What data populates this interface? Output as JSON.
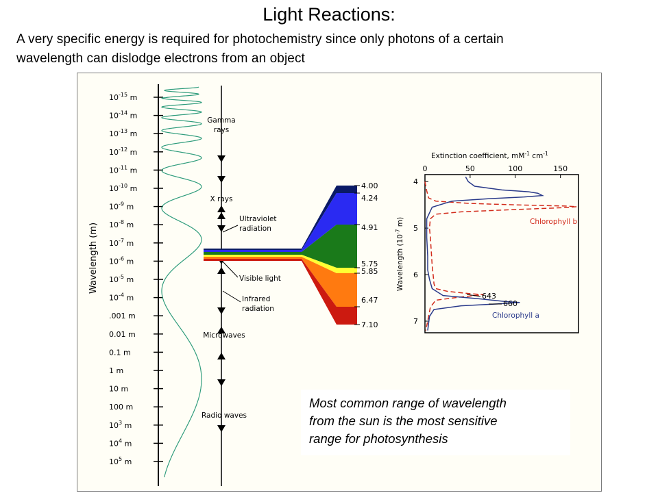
{
  "slide": {
    "title": "Light Reactions:",
    "subtitle_line1": "A very specific energy is required for photochemistry since only photons of a certain",
    "subtitle_line2": "wavelength can dislodge electrons from an object"
  },
  "spectrum": {
    "axis_label": "Wavelength (m)",
    "ticks": [
      {
        "base": "10",
        "exp": "-15",
        "unit": " m"
      },
      {
        "base": "10",
        "exp": "-14",
        "unit": " m"
      },
      {
        "base": "10",
        "exp": "-13",
        "unit": " m"
      },
      {
        "base": "10",
        "exp": "-12",
        "unit": " m"
      },
      {
        "base": "10",
        "exp": "-11",
        "unit": " m"
      },
      {
        "base": "10",
        "exp": "-10",
        "unit": " m"
      },
      {
        "base": "10",
        "exp": "-9",
        "unit": " m"
      },
      {
        "base": "10",
        "exp": "-8",
        "unit": " m"
      },
      {
        "base": "10",
        "exp": "-7",
        "unit": " m"
      },
      {
        "base": "10",
        "exp": "-6",
        "unit": " m"
      },
      {
        "base": "10",
        "exp": "-5",
        "unit": " m"
      },
      {
        "base": "10",
        "exp": "-4",
        "unit": " m"
      },
      {
        "base": ".001 m",
        "exp": "",
        "unit": ""
      },
      {
        "base": "0.01 m",
        "exp": "",
        "unit": ""
      },
      {
        "base": "0.1 m",
        "exp": "",
        "unit": ""
      },
      {
        "base": "1 m",
        "exp": "",
        "unit": ""
      },
      {
        "base": "10 m",
        "exp": "",
        "unit": ""
      },
      {
        "base": "100 m",
        "exp": "",
        "unit": ""
      },
      {
        "base": "10",
        "exp": "3",
        "unit": " m"
      },
      {
        "base": "10",
        "exp": "4",
        "unit": " m"
      },
      {
        "base": "10",
        "exp": "5",
        "unit": " m"
      }
    ],
    "regions": {
      "gamma_1": "Gamma",
      "gamma_2": "rays",
      "xrays": "X rays",
      "uv_1": "Ultraviolet",
      "uv_2": "radiation",
      "visible": "Visible light",
      "ir_1": "Infrared",
      "ir_2": "radiation",
      "microwaves": "Microwaves",
      "radio": "Radio waves"
    },
    "visible_scale": {
      "labels": [
        "4.00",
        "4.24",
        "4.91",
        "5.75",
        "5.85",
        "6.47",
        "7.10"
      ],
      "colors": [
        "#0a1a66",
        "#2a2af2",
        "#1a7a1a",
        "#ffff33",
        "#ff7a10",
        "#cc1a10"
      ]
    }
  },
  "chart_data": {
    "type": "line",
    "title": "",
    "xlabel_main": "Extinction coefficient, mM",
    "xlabel_exp1": "-1",
    "xlabel_mid": " cm",
    "xlabel_exp2": "-1",
    "ylabel_main": "Wavelength (10",
    "ylabel_exp": "-7",
    "ylabel_end": " m)",
    "x_ticks": [
      0,
      50,
      100,
      150
    ],
    "y_ticks": [
      4,
      5,
      6,
      7
    ],
    "xlim": [
      0,
      170
    ],
    "ylim": [
      3.85,
      7.25
    ],
    "annotations": {
      "peak_a": "643",
      "peak_b": "660"
    },
    "series": [
      {
        "name": "Chlorophyll b",
        "color": "#d22b1b",
        "dash": true,
        "points": [
          [
            0,
            4.0
          ],
          [
            2,
            4.2
          ],
          [
            4,
            4.35
          ],
          [
            12,
            4.42
          ],
          [
            50,
            4.47
          ],
          [
            100,
            4.5
          ],
          [
            155,
            4.525
          ],
          [
            168,
            4.54
          ],
          [
            155,
            4.56
          ],
          [
            100,
            4.6
          ],
          [
            40,
            4.65
          ],
          [
            12,
            4.7
          ],
          [
            6,
            4.8
          ],
          [
            5,
            5.0
          ],
          [
            6,
            5.2
          ],
          [
            7,
            5.5
          ],
          [
            8,
            5.8
          ],
          [
            9,
            6.0
          ],
          [
            10,
            6.2
          ],
          [
            12,
            6.3
          ],
          [
            25,
            6.36
          ],
          [
            50,
            6.41
          ],
          [
            65,
            6.43
          ],
          [
            40,
            6.48
          ],
          [
            12,
            6.55
          ],
          [
            6,
            6.7
          ],
          [
            4,
            6.9
          ],
          [
            2,
            7.1
          ],
          [
            1,
            7.2
          ]
        ]
      },
      {
        "name": "Chlorophyll a",
        "color": "#2a3a8a",
        "dash": false,
        "points": [
          [
            45,
            3.9
          ],
          [
            48,
            4.0
          ],
          [
            55,
            4.1
          ],
          [
            85,
            4.18
          ],
          [
            115,
            4.22
          ],
          [
            125,
            4.25
          ],
          [
            130,
            4.3
          ],
          [
            110,
            4.33
          ],
          [
            70,
            4.37
          ],
          [
            30,
            4.42
          ],
          [
            8,
            4.55
          ],
          [
            2,
            4.8
          ],
          [
            2,
            5.2
          ],
          [
            3,
            5.6
          ],
          [
            3,
            5.9
          ],
          [
            5,
            6.1
          ],
          [
            8,
            6.3
          ],
          [
            20,
            6.45
          ],
          [
            60,
            6.52
          ],
          [
            90,
            6.58
          ],
          [
            105,
            6.6
          ],
          [
            80,
            6.63
          ],
          [
            40,
            6.67
          ],
          [
            10,
            6.75
          ],
          [
            5,
            6.9
          ],
          [
            3,
            7.2
          ]
        ]
      }
    ]
  },
  "note": {
    "line1": "Most common range of wavelength",
    "line2": "from the sun is the most sensitive",
    "line3": "range for photosynthesis"
  }
}
